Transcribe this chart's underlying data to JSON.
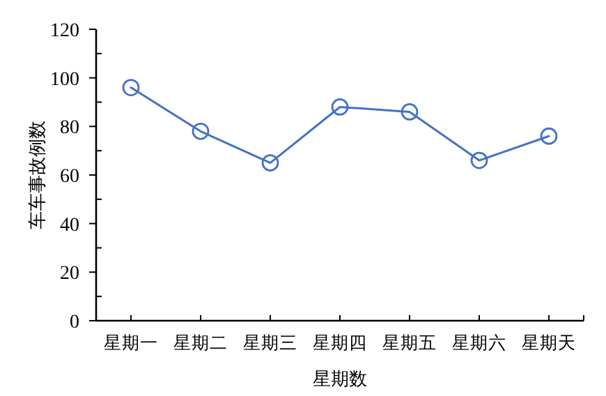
{
  "chart_data": {
    "type": "line",
    "xlabel": "星期数",
    "ylabel": "车车事故例数",
    "categories": [
      "星期一",
      "星期二",
      "星期三",
      "星期四",
      "星期五",
      "星期六",
      "星期天"
    ],
    "series": [
      {
        "color": "#4472c4",
        "values": [
          96,
          78,
          65,
          88,
          86,
          66,
          76
        ]
      }
    ],
    "ylim": [
      0,
      120
    ],
    "yticks": [
      0,
      20,
      40,
      60,
      80,
      100,
      120
    ],
    "marker": "circle",
    "line_style": "solid"
  }
}
